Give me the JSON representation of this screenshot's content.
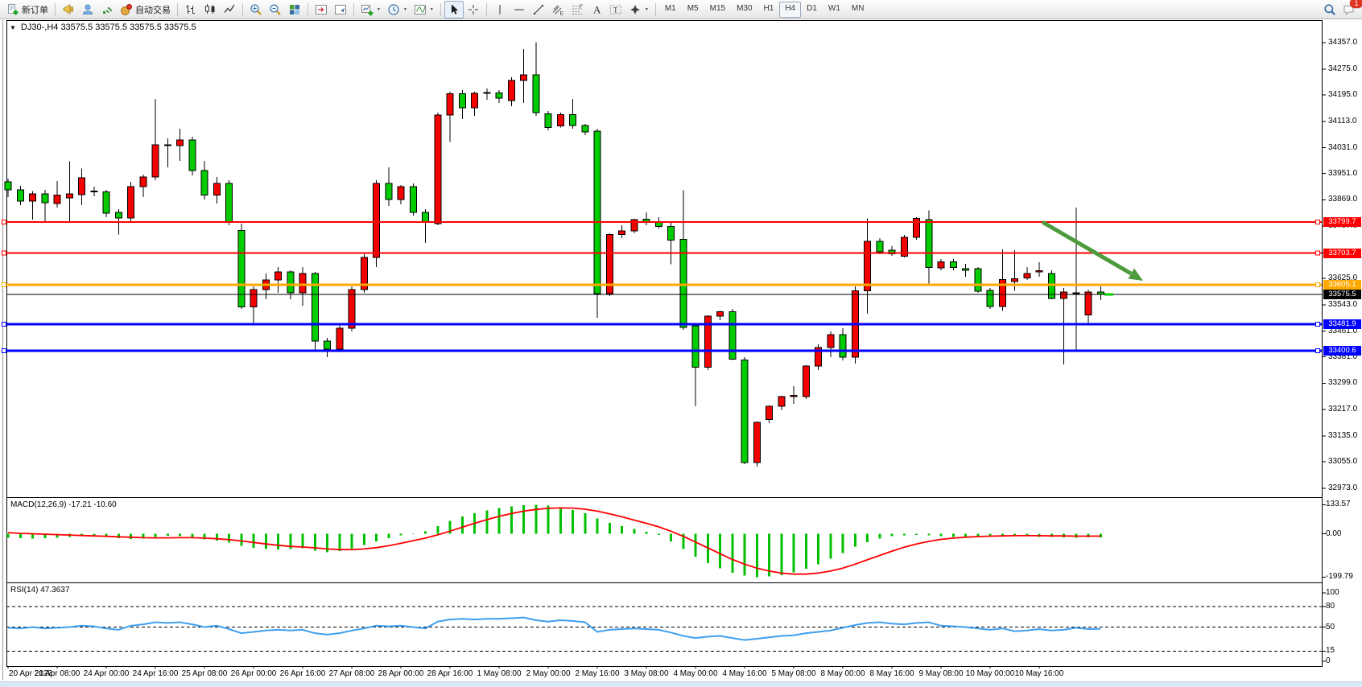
{
  "toolbar": {
    "items": [
      {
        "type": "button",
        "name": "new-order-button",
        "icon": "new-order-icon",
        "label": "新订单"
      },
      {
        "type": "sep"
      },
      {
        "type": "button",
        "name": "alerts-button",
        "icon": "horn-icon"
      },
      {
        "type": "button",
        "name": "community-button",
        "icon": "person-icon"
      },
      {
        "type": "button",
        "name": "signals-button",
        "icon": "signal-icon"
      },
      {
        "type": "button",
        "name": "auto-trading-button",
        "icon": "auto-trading-icon",
        "label": "自动交易"
      },
      {
        "type": "sep"
      },
      {
        "type": "button",
        "name": "bar-chart-button",
        "icon": "bar-chart-icon"
      },
      {
        "type": "button",
        "name": "candlestick-chart-button",
        "icon": "candlestick-icon"
      },
      {
        "type": "button",
        "name": "line-chart-button",
        "icon": "line-chart-icon"
      },
      {
        "type": "sep"
      },
      {
        "type": "button",
        "name": "zoom-in-button",
        "icon": "zoom-in-icon"
      },
      {
        "type": "button",
        "name": "zoom-out-button",
        "icon": "zoom-out-icon"
      },
      {
        "type": "button",
        "name": "tile-windows-button",
        "icon": "tile-windows-icon"
      },
      {
        "type": "sep"
      },
      {
        "type": "button",
        "name": "chart-shift-button",
        "icon": "chart-shift-icon"
      },
      {
        "type": "button",
        "name": "auto-scroll-button",
        "icon": "auto-scroll-icon"
      },
      {
        "type": "sep"
      },
      {
        "type": "button",
        "name": "new-chart-button",
        "icon": "new-chart-icon",
        "dropdown": true
      },
      {
        "type": "button",
        "name": "period-button",
        "icon": "clock-icon",
        "dropdown": true
      },
      {
        "type": "button",
        "name": "template-button",
        "icon": "template-icon",
        "dropdown": true
      },
      {
        "type": "sep"
      },
      {
        "type": "button",
        "name": "cursor-button",
        "icon": "cursor-icon",
        "active": true
      },
      {
        "type": "button",
        "name": "crosshair-button",
        "icon": "crosshair-icon"
      },
      {
        "type": "sep"
      },
      {
        "type": "button",
        "name": "vertical-line-button",
        "icon": "vline-icon"
      },
      {
        "type": "button",
        "name": "horizontal-line-button",
        "icon": "hline-icon"
      },
      {
        "type": "button",
        "name": "trendline-button",
        "icon": "trendline-icon"
      },
      {
        "type": "button",
        "name": "channel-button",
        "icon": "channel-icon"
      },
      {
        "type": "button",
        "name": "fibonacci-button",
        "icon": "fibonacci-icon"
      },
      {
        "type": "button",
        "name": "text-button",
        "icon": "text-icon"
      },
      {
        "type": "button",
        "name": "label-button",
        "icon": "label-icon"
      },
      {
        "type": "button",
        "name": "arrows-button",
        "icon": "arrows-icon",
        "dropdown": true
      },
      {
        "type": "sep"
      }
    ],
    "timeframes": [
      "M1",
      "M5",
      "M15",
      "M30",
      "H1",
      "H4",
      "D1",
      "W1",
      "MN"
    ],
    "active_timeframe": "H4",
    "right_items": [
      {
        "name": "search-button",
        "icon": "search-icon"
      },
      {
        "name": "notifications-button",
        "icon": "chat-icon",
        "badge": "1"
      }
    ]
  },
  "chart": {
    "title": "DJ30-,H4 33575.5 33575.5 33575.5 33575.5",
    "symbol": "DJ30-",
    "period": "H4",
    "bid": "33575.5",
    "arrow_color": "#4e9b3e",
    "up_color": "#f40000",
    "down_color": "#00cc00"
  },
  "price_axis": {
    "ticks": [
      "34357.0",
      "34275.0",
      "34195.0",
      "34113.0",
      "34031.0",
      "33951.0",
      "33869.0",
      "33787.0",
      "33705.0",
      "33625.0",
      "33543.0",
      "33461.0",
      "33381.0",
      "33299.0",
      "33217.0",
      "33135.0",
      "33055.0",
      "32973.0"
    ]
  },
  "hlines": [
    {
      "price": 33799.7,
      "label": "33799.7",
      "color": "#ff0000",
      "width": 2
    },
    {
      "price": 33703.7,
      "label": "33703.7",
      "color": "#ff0000",
      "width": 2
    },
    {
      "price": 33605.1,
      "label": "33605.1",
      "color": "#ffa800",
      "width": 3
    },
    {
      "price": 33481.9,
      "label": "33481.9",
      "color": "#0000ff",
      "width": 3
    },
    {
      "price": 33400.6,
      "label": "33400.6",
      "color": "#0000ff",
      "width": 3
    }
  ],
  "bid_line": {
    "price": 33575.5,
    "label": "33575.5",
    "color": "#000000"
  },
  "macd": {
    "label": "MACD(12,26,9) -17.21 -10.60",
    "axis_labels": [
      {
        "value": 133.57,
        "text": "133.57"
      },
      {
        "value": 0,
        "text": "0.00"
      },
      {
        "value": -199.79,
        "text": "-199.79"
      }
    ],
    "hist_color": "#00c000",
    "signal_color": "#ff0000",
    "histogram": [
      -18,
      -20,
      -22,
      -20,
      -18,
      -15,
      -12,
      -10,
      -14,
      -20,
      -24,
      -22,
      -15,
      -10,
      -12,
      -18,
      -26,
      -32,
      -40,
      -55,
      -65,
      -70,
      -72,
      -70,
      -66,
      -78,
      -85,
      -80,
      -68,
      -52,
      -35,
      -20,
      -8,
      2,
      12,
      35,
      60,
      80,
      95,
      108,
      118,
      126,
      131,
      133.57,
      130,
      122,
      110,
      95,
      70,
      50,
      35,
      22,
      10,
      -5,
      -35,
      -70,
      -105,
      -135,
      -160,
      -180,
      -192,
      -199.79,
      -197,
      -190,
      -178,
      -162,
      -140,
      -115,
      -88,
      -60,
      -38,
      -22,
      -12,
      -8,
      -6,
      -8,
      -12,
      -15,
      -14,
      -12,
      -10,
      -9,
      -10,
      -12,
      -14,
      -15,
      -16,
      -18,
      -17.5,
      -17.21
    ],
    "signal": [
      5,
      2,
      0,
      -2,
      -4,
      -6,
      -8,
      -10,
      -12,
      -14,
      -16,
      -18,
      -19,
      -19,
      -18,
      -18,
      -20,
      -23,
      -27,
      -33,
      -40,
      -47,
      -53,
      -58,
      -61,
      -65,
      -70,
      -73,
      -73,
      -70,
      -64,
      -55,
      -44,
      -32,
      -20,
      -5,
      12,
      30,
      48,
      65,
      80,
      93,
      104,
      112,
      117,
      119,
      118,
      113,
      104,
      92,
      78,
      63,
      48,
      32,
      12,
      -12,
      -38,
      -65,
      -92,
      -118,
      -140,
      -158,
      -172,
      -181,
      -186,
      -186,
      -181,
      -172,
      -158,
      -140,
      -120,
      -100,
      -80,
      -62,
      -47,
      -35,
      -26,
      -20,
      -16,
      -13,
      -11,
      -10,
      -9,
      -9,
      -9,
      -10,
      -10,
      -11,
      -11,
      -10.6
    ]
  },
  "rsi": {
    "label": "RSI(14) 47.3637",
    "axis_labels": [
      {
        "value": 100,
        "text": "100"
      },
      {
        "value": 80,
        "text": "80"
      },
      {
        "value": 50,
        "text": "50"
      },
      {
        "value": 15,
        "text": "15"
      },
      {
        "value": 0,
        "text": "0"
      }
    ],
    "levels": [
      80,
      50,
      15
    ],
    "color": "#3e9ff0",
    "values": [
      49,
      48,
      50,
      48,
      49,
      50,
      52,
      51,
      48,
      46,
      52,
      54,
      57,
      56,
      57,
      54,
      50,
      52,
      47,
      41,
      43,
      45,
      46,
      45,
      46,
      41,
      39,
      41,
      45,
      48,
      52,
      51,
      52,
      50,
      48,
      58,
      61,
      62,
      61,
      62,
      62,
      63,
      64,
      60,
      58,
      60,
      59,
      57,
      43,
      46,
      47,
      48,
      47,
      46,
      42,
      37,
      34,
      36,
      37,
      34,
      31,
      33,
      35,
      37,
      38,
      41,
      43,
      45,
      49,
      53,
      56,
      57,
      55,
      54,
      56,
      57,
      52,
      51,
      50,
      48,
      46,
      48,
      44,
      45,
      47,
      45,
      46,
      49,
      47,
      47.36
    ]
  },
  "chart_data": {
    "type": "candlestick",
    "symbol": "DJ30-",
    "timeframe": "H4",
    "y_range": [
      32955,
      34390
    ],
    "x_labels": [
      "20 Apr 2023",
      "21 Apr 08:00",
      "24 Apr 00:00",
      "24 Apr 16:00",
      "25 Apr 08:00",
      "26 Apr 00:00",
      "26 Apr 16:00",
      "27 Apr 08:00",
      "28 Apr 00:00",
      "28 Apr 16:00",
      "1 May 08:00",
      "2 May 00:00",
      "2 May 16:00",
      "3 May 08:00",
      "4 May 00:00",
      "4 May 16:00",
      "5 May 08:00",
      "8 May 00:00",
      "8 May 16:00",
      "9 May 08:00",
      "10 May 00:00",
      "10 May 16:00"
    ],
    "label_every": 4,
    "candles": [
      [
        33925,
        33935,
        33878,
        33900
      ],
      [
        33900,
        33912,
        33852,
        33865
      ],
      [
        33865,
        33896,
        33807,
        33888
      ],
      [
        33888,
        33900,
        33803,
        33860
      ],
      [
        33858,
        33927,
        33845,
        33884
      ],
      [
        33875,
        33989,
        33799,
        33887
      ],
      [
        33885,
        33966,
        33853,
        33938
      ],
      [
        33896,
        33910,
        33880,
        33894
      ],
      [
        33894,
        33900,
        33815,
        33827
      ],
      [
        33830,
        33840,
        33761,
        33812
      ],
      [
        33812,
        33925,
        33803,
        33910
      ],
      [
        33910,
        33948,
        33878,
        33940
      ],
      [
        33940,
        34182,
        33930,
        34040
      ],
      [
        34040,
        34060,
        33970,
        34037
      ],
      [
        34037,
        34090,
        33990,
        34055
      ],
      [
        34055,
        34065,
        33945,
        33960
      ],
      [
        33960,
        33990,
        33870,
        33884
      ],
      [
        33884,
        33940,
        33858,
        33920
      ],
      [
        33920,
        33930,
        33790,
        33800
      ],
      [
        33774,
        33795,
        33530,
        33536
      ],
      [
        33536,
        33600,
        33480,
        33590
      ],
      [
        33590,
        33640,
        33560,
        33620
      ],
      [
        33620,
        33660,
        33580,
        33645
      ],
      [
        33645,
        33650,
        33560,
        33580
      ],
      [
        33580,
        33660,
        33540,
        33640
      ],
      [
        33640,
        33645,
        33400,
        33430
      ],
      [
        33430,
        33440,
        33380,
        33405
      ],
      [
        33405,
        33480,
        33395,
        33470
      ],
      [
        33470,
        33600,
        33460,
        33590
      ],
      [
        33590,
        33700,
        33580,
        33690
      ],
      [
        33690,
        33930,
        33660,
        33920
      ],
      [
        33920,
        33970,
        33850,
        33870
      ],
      [
        33870,
        33915,
        33855,
        33910
      ],
      [
        33910,
        33920,
        33820,
        33830
      ],
      [
        33830,
        33840,
        33735,
        33800
      ],
      [
        33795,
        34140,
        33790,
        34132
      ],
      [
        34132,
        34205,
        34049,
        34199
      ],
      [
        34199,
        34210,
        34120,
        34155
      ],
      [
        34155,
        34205,
        34130,
        34200
      ],
      [
        34200,
        34215,
        34180,
        34203
      ],
      [
        34201,
        34210,
        34170,
        34185
      ],
      [
        34178,
        34250,
        34160,
        34240
      ],
      [
        34240,
        34338,
        34170,
        34257
      ],
      [
        34257,
        34359,
        34130,
        34140
      ],
      [
        34136,
        34145,
        34085,
        34094
      ],
      [
        34099,
        34140,
        34094,
        34134
      ],
      [
        34134,
        34182,
        34090,
        34100
      ],
      [
        34100,
        34105,
        34070,
        34080
      ],
      [
        34082,
        34090,
        33503,
        33578
      ],
      [
        33578,
        33765,
        33570,
        33761
      ],
      [
        33761,
        33790,
        33750,
        33773
      ],
      [
        33773,
        33810,
        33765,
        33807
      ],
      [
        33809,
        33830,
        33790,
        33799
      ],
      [
        33801,
        33815,
        33780,
        33786
      ],
      [
        33786,
        33800,
        33669,
        33744
      ],
      [
        33746,
        33899,
        33465,
        33473
      ],
      [
        33478,
        33485,
        33228,
        33349
      ],
      [
        33349,
        33510,
        33340,
        33507
      ],
      [
        33507,
        33525,
        33495,
        33521
      ],
      [
        33521,
        33530,
        33371,
        33374
      ],
      [
        33371,
        33380,
        33048,
        33052
      ],
      [
        33052,
        33180,
        33040,
        33178
      ],
      [
        33186,
        33230,
        33175,
        33228
      ],
      [
        33228,
        33260,
        33215,
        33257
      ],
      [
        33258,
        33290,
        33235,
        33261
      ],
      [
        33257,
        33355,
        33250,
        33353
      ],
      [
        33353,
        33420,
        33340,
        33410
      ],
      [
        33410,
        33460,
        33380,
        33450
      ],
      [
        33450,
        33470,
        33370,
        33380
      ],
      [
        33380,
        33600,
        33360,
        33586
      ],
      [
        33586,
        33811,
        33515,
        33740
      ],
      [
        33740,
        33750,
        33700,
        33707
      ],
      [
        33713,
        33725,
        33695,
        33701
      ],
      [
        33694,
        33760,
        33690,
        33753
      ],
      [
        33753,
        33815,
        33745,
        33811
      ],
      [
        33807,
        33836,
        33607,
        33659
      ],
      [
        33657,
        33685,
        33650,
        33676
      ],
      [
        33676,
        33685,
        33650,
        33659
      ],
      [
        33655,
        33670,
        33630,
        33650
      ],
      [
        33655,
        33660,
        33580,
        33585
      ],
      [
        33588,
        33595,
        33530,
        33538
      ],
      [
        33538,
        33715,
        33524,
        33621
      ],
      [
        33615,
        33713,
        33586,
        33624
      ],
      [
        33626,
        33660,
        33620,
        33640
      ],
      [
        33645,
        33675,
        33630,
        33649
      ],
      [
        33640,
        33650,
        33560,
        33563
      ],
      [
        33563,
        33595,
        33357,
        33582
      ],
      [
        33580,
        33845,
        33403,
        33577
      ],
      [
        33511,
        33590,
        33480,
        33582
      ],
      [
        33582,
        33600,
        33558,
        33575.5
      ]
    ]
  }
}
